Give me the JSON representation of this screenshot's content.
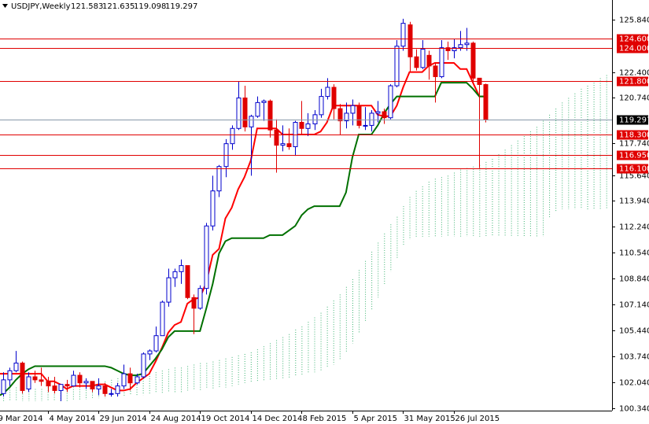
{
  "chart_data": {
    "type": "candlestick",
    "title": "USDJPY,Weekly",
    "categories": [
      "9 Mar 2014",
      null,
      null,
      null,
      null,
      null,
      null,
      null,
      "4 May 2014",
      null,
      null,
      null,
      null,
      null,
      null,
      null,
      "29 Jun 2014",
      null,
      null,
      null,
      null,
      null,
      null,
      null,
      "24 Aug 2014",
      null,
      null,
      null,
      null,
      null,
      null,
      null,
      "19 Oct 2014",
      null,
      null,
      null,
      null,
      null,
      null,
      null,
      "14 Dec 2014",
      null,
      null,
      null,
      null,
      null,
      null,
      null,
      "8 Feb 2015",
      null,
      null,
      null,
      null,
      null,
      null,
      null,
      "5 Apr 2015",
      null,
      null,
      null,
      null,
      null,
      null,
      null,
      "31 May 2015",
      null,
      null,
      null,
      null,
      null,
      null,
      null,
      "26 Jul 2015",
      null,
      null,
      null,
      null,
      null
    ],
    "open": [
      103.2,
      101.3,
      102.2,
      102.8,
      103.3,
      101.6,
      102.4,
      102.2,
      102.1,
      101.8,
      101.5,
      101.9,
      101.8,
      102.5,
      102.0,
      102.1,
      101.6,
      101.8,
      101.3,
      101.3,
      101.8,
      102.6,
      102.0,
      102.4,
      103.9,
      104.1,
      105.1,
      107.3,
      108.9,
      109.3,
      109.7,
      107.6,
      106.9,
      108.2,
      112.3,
      114.6,
      116.2,
      117.7,
      118.7,
      120.7,
      118.8,
      119.5,
      120.4,
      120.5,
      118.6,
      117.6,
      117.7,
      117.5,
      119.1,
      118.7,
      119.0,
      119.6,
      120.8,
      121.4,
      120.0,
      119.2,
      119.7,
      120.2,
      118.9,
      118.9,
      119.7,
      119.8,
      119.4,
      121.5,
      124.1,
      125.5,
      123.4,
      122.7,
      123.5,
      122.8,
      122.1,
      124.0,
      123.8,
      124.0,
      124.2,
      124.3,
      122.0,
      121.583
    ],
    "high": [
      103.8,
      102.7,
      103.0,
      104.1,
      103.4,
      102.7,
      102.8,
      103.0,
      102.4,
      102.4,
      101.9,
      102.2,
      102.8,
      102.7,
      102.3,
      102.1,
      102.3,
      102.0,
      101.6,
      102.0,
      103.2,
      103.0,
      102.6,
      104.0,
      104.2,
      105.7,
      107.4,
      109.5,
      109.5,
      110.1,
      109.7,
      107.8,
      108.4,
      112.5,
      115.6,
      116.3,
      118.0,
      118.9,
      121.8,
      121.5,
      119.6,
      120.8,
      120.6,
      120.6,
      119.3,
      118.9,
      118.7,
      119.2,
      120.5,
      119.7,
      119.9,
      121.3,
      122.0,
      121.6,
      120.3,
      120.4,
      120.6,
      120.4,
      120.1,
      119.9,
      120.5,
      120.0,
      121.6,
      124.5,
      125.9,
      125.7,
      123.9,
      124.5,
      123.8,
      123.0,
      124.5,
      124.4,
      124.6,
      125.1,
      125.3,
      124.4,
      122.0,
      121.635
    ],
    "low": [
      101.2,
      101.1,
      101.8,
      102.7,
      101.3,
      101.4,
      102.0,
      101.8,
      101.4,
      101.3,
      100.8,
      101.4,
      101.8,
      101.7,
      101.6,
      101.4,
      101.2,
      101.1,
      101.1,
      101.1,
      101.6,
      101.5,
      101.9,
      102.3,
      103.5,
      104.0,
      105.1,
      107.0,
      108.3,
      108.5,
      107.5,
      105.2,
      106.8,
      107.8,
      112.0,
      114.2,
      115.5,
      117.3,
      118.6,
      118.5,
      115.6,
      119.4,
      119.2,
      118.1,
      115.8,
      117.2,
      117.3,
      116.9,
      118.3,
      118.2,
      118.6,
      119.4,
      120.6,
      119.3,
      118.3,
      118.7,
      118.9,
      118.7,
      118.6,
      118.5,
      119.1,
      119.0,
      119.3,
      121.4,
      123.8,
      122.4,
      122.5,
      122.6,
      121.9,
      120.4,
      122.0,
      123.2,
      123.3,
      123.8,
      123.8,
      121.7,
      116.1,
      119.098
    ],
    "close": [
      101.3,
      102.2,
      102.8,
      103.3,
      101.5,
      102.4,
      102.2,
      102.1,
      101.8,
      101.5,
      101.9,
      101.8,
      102.5,
      102.0,
      102.1,
      101.6,
      101.8,
      101.3,
      101.3,
      101.8,
      102.6,
      102.0,
      102.4,
      103.9,
      104.1,
      105.1,
      107.3,
      108.9,
      109.3,
      109.7,
      107.6,
      106.9,
      108.2,
      112.3,
      114.6,
      116.2,
      117.7,
      118.7,
      120.7,
      118.8,
      119.5,
      120.4,
      120.5,
      118.6,
      117.6,
      117.7,
      117.5,
      119.1,
      118.7,
      119.0,
      119.6,
      120.8,
      121.4,
      120.0,
      119.2,
      119.7,
      120.2,
      118.9,
      118.9,
      119.7,
      119.8,
      119.4,
      121.5,
      124.1,
      125.6,
      123.4,
      122.7,
      123.9,
      122.8,
      122.1,
      124.0,
      123.8,
      124.0,
      124.2,
      124.3,
      122.0,
      121.583,
      119.297
    ],
    "up_color": "#0000cc",
    "down_color": "#e00000",
    "lines": [
      {
        "color": "#ff0000",
        "values": [
          102.6,
          102.6,
          102.6,
          102.6,
          102.6,
          102.6,
          102.6,
          102.6,
          102.1,
          102.1,
          101.9,
          101.6,
          101.8,
          101.8,
          101.8,
          101.8,
          101.9,
          101.9,
          101.7,
          101.5,
          101.5,
          101.6,
          102.0,
          102.3,
          102.6,
          103.4,
          104.3,
          105.3,
          105.8,
          106.0,
          107.2,
          107.5,
          107.6,
          108.6,
          110.4,
          110.8,
          112.8,
          113.5,
          114.7,
          115.5,
          116.6,
          118.7,
          118.7,
          118.7,
          118.7,
          118.3,
          118.3,
          118.3,
          118.3,
          118.3,
          118.3,
          118.5,
          119.1,
          120.2,
          120.2,
          120.2,
          120.2,
          120.2,
          120.2,
          120.2,
          119.6,
          119.5,
          119.5,
          120.2,
          121.4,
          122.4,
          122.4,
          122.4,
          122.8,
          123.0,
          123.0,
          123.0,
          123.0,
          122.6,
          122.6,
          121.7,
          120.8,
          120.8
        ]
      },
      {
        "color": "#007000",
        "values": [
          101.1,
          101.3,
          101.7,
          102.2,
          102.6,
          102.9,
          103.1,
          103.1,
          103.1,
          103.1,
          103.1,
          103.1,
          103.1,
          103.1,
          103.1,
          103.1,
          103.1,
          103.1,
          103.0,
          102.8,
          102.6,
          102.5,
          102.5,
          102.6,
          103.1,
          103.6,
          104.2,
          105.0,
          105.4,
          105.4,
          105.4,
          105.4,
          105.4,
          106.9,
          108.5,
          110.5,
          111.3,
          111.5,
          111.5,
          111.5,
          111.5,
          111.5,
          111.5,
          111.7,
          111.7,
          111.7,
          112.0,
          112.3,
          113.0,
          113.4,
          113.6,
          113.6,
          113.6,
          113.6,
          113.6,
          114.5,
          116.8,
          118.3,
          118.3,
          118.3,
          118.9,
          119.7,
          120.3,
          120.8,
          120.8,
          120.8,
          120.8,
          120.8,
          120.8,
          120.8,
          121.7,
          121.7,
          121.7,
          121.7,
          121.7,
          121.3,
          120.8,
          120.8
        ]
      }
    ],
    "cloud": {
      "color": "#3cb371",
      "a": [
        101.8,
        101.8,
        101.7,
        101.7,
        101.6,
        101.6,
        101.6,
        101.6,
        101.7,
        101.7,
        101.8,
        101.8,
        101.9,
        101.9,
        102.0,
        102.0,
        102.1,
        102.1,
        102.2,
        102.3,
        102.3,
        102.4,
        102.5,
        102.6,
        102.6,
        102.7,
        102.8,
        102.9,
        103.0,
        103.0,
        103.1,
        103.2,
        103.3,
        103.3,
        103.4,
        103.5,
        103.6,
        103.7,
        103.8,
        103.9,
        104.0,
        104.2,
        104.4,
        104.6,
        104.8,
        105.0,
        105.2,
        105.5,
        105.7,
        106.0,
        106.3,
        106.6,
        107.0,
        107.4,
        107.8,
        108.3,
        108.8,
        109.4,
        110.0,
        110.6,
        111.2,
        111.8,
        112.4,
        112.9,
        113.6,
        114.2,
        114.6,
        114.9,
        115.2,
        115.4,
        115.5,
        115.6,
        115.8,
        116.0,
        116.1,
        116.2,
        116.3,
        116.5,
        116.7,
        117.0,
        117.3,
        117.6,
        117.9,
        118.2,
        118.5,
        118.8,
        119.2,
        119.6,
        120.0,
        120.4,
        120.7,
        121.0,
        121.3,
        121.5,
        121.7,
        122.0,
        122.2
      ],
      "b": [
        100.8,
        100.8,
        100.8,
        100.8,
        100.8,
        100.8,
        100.8,
        100.8,
        100.8,
        100.8,
        100.8,
        100.8,
        100.9,
        100.9,
        100.9,
        101.0,
        101.0,
        101.0,
        101.1,
        101.1,
        101.1,
        101.2,
        101.2,
        101.2,
        101.3,
        101.3,
        101.3,
        101.4,
        101.4,
        101.4,
        101.5,
        101.5,
        101.5,
        101.6,
        101.6,
        101.7,
        101.7,
        101.8,
        101.9,
        102.0,
        102.0,
        102.1,
        102.1,
        102.2,
        102.2,
        102.3,
        102.3,
        102.4,
        102.5,
        102.6,
        102.7,
        102.8,
        103.0,
        103.2,
        103.5,
        104.0,
        104.6,
        105.3,
        106.0,
        106.8,
        107.6,
        108.4,
        109.3,
        110.2,
        111.0,
        111.4,
        111.6,
        111.6,
        111.6,
        111.6,
        111.6,
        111.6,
        111.6,
        111.6,
        111.6,
        111.6,
        111.6,
        111.6,
        111.6,
        111.6,
        111.6,
        111.6,
        111.6,
        111.6,
        111.6,
        111.6,
        111.6,
        112.8,
        113.2,
        113.4,
        113.4,
        113.4,
        113.4,
        113.4,
        113.4,
        113.4,
        113.4
      ]
    },
    "levels": [
      {
        "value": 124.6,
        "label": "124.600"
      },
      {
        "value": 124.0,
        "label": "124.000"
      },
      {
        "value": 121.8,
        "label": "121.800"
      },
      {
        "value": 118.3,
        "label": "118.300"
      },
      {
        "value": 116.95,
        "label": "116.950"
      },
      {
        "value": 116.1,
        "label": "116.100"
      }
    ],
    "level_color": "#e00000",
    "ylim": [
      100.18,
      127.13
    ],
    "yticks": [
      {
        "value": 125.84,
        "label": "125.840"
      },
      {
        "value": 122.4,
        "label": "122.400"
      },
      {
        "value": 120.74,
        "label": "120.740"
      },
      {
        "value": 117.74,
        "label": "117.740"
      },
      {
        "value": 115.64,
        "label": "115.640"
      },
      {
        "value": 113.94,
        "label": "113.940"
      },
      {
        "value": 112.24,
        "label": "112.240"
      },
      {
        "value": 110.54,
        "label": "110.540"
      },
      {
        "value": 108.84,
        "label": "108.840"
      },
      {
        "value": 107.14,
        "label": "107.140"
      },
      {
        "value": 105.44,
        "label": "105.440"
      },
      {
        "value": 103.74,
        "label": "103.740"
      },
      {
        "value": 102.04,
        "label": "102.040"
      },
      {
        "value": 100.34,
        "label": "100.340"
      }
    ]
  }
}
